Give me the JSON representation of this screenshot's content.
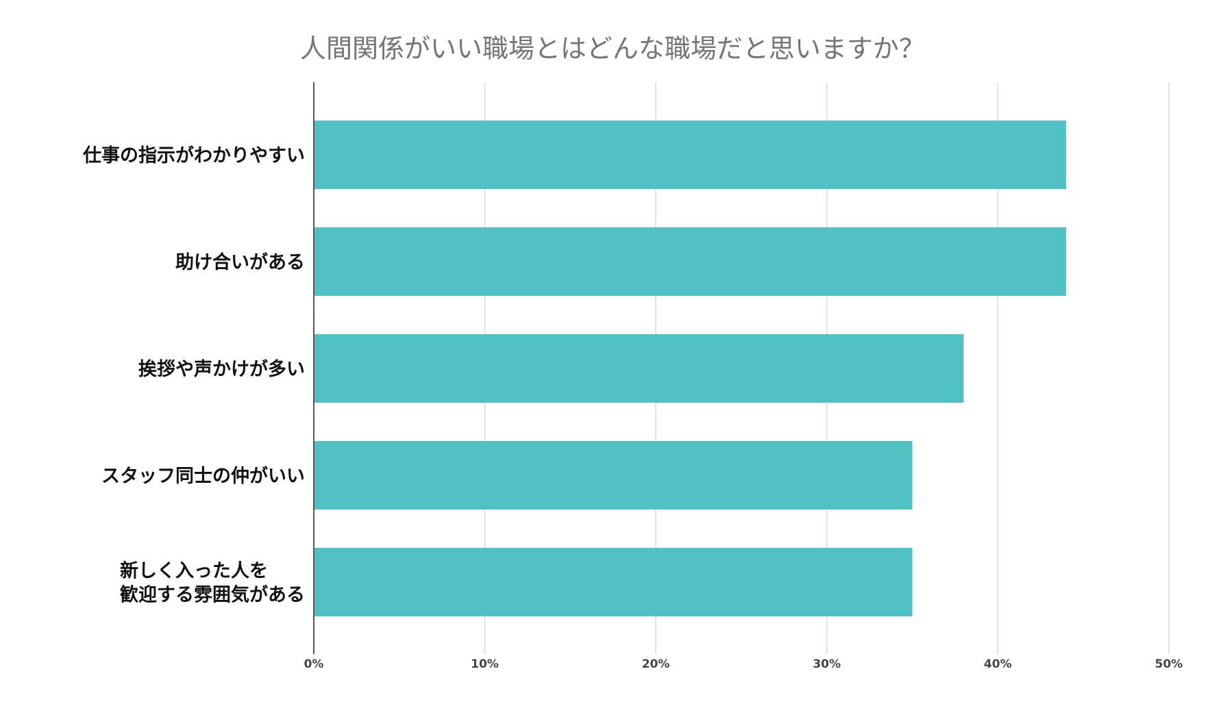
{
  "chart_data": {
    "type": "bar",
    "orientation": "horizontal",
    "title": "人間関係がいい職場とはどんな職場だと思いますか？",
    "xlabel": "",
    "ylabel": "",
    "categories": [
      "仕事の指示がわかりやすい",
      "助け合いがある",
      "挨拶や声かけが多い",
      "スタッフ同士の仲がいい",
      "新しく入った人を\n歓迎する雰囲気がある"
    ],
    "values": [
      44,
      44,
      38,
      35,
      35
    ],
    "xlim": [
      0,
      50
    ],
    "ticks": [
      0,
      10,
      20,
      30,
      40,
      50
    ],
    "tick_labels": [
      "0%",
      "10%",
      "20%",
      "30%",
      "40%",
      "50%"
    ],
    "grid": true,
    "legend": "none",
    "bar_color": "#4fc1c3",
    "grid_color": "#d9d9d9",
    "axis_color": "#555555",
    "title_color": "#757575",
    "label_color": "#111111"
  }
}
